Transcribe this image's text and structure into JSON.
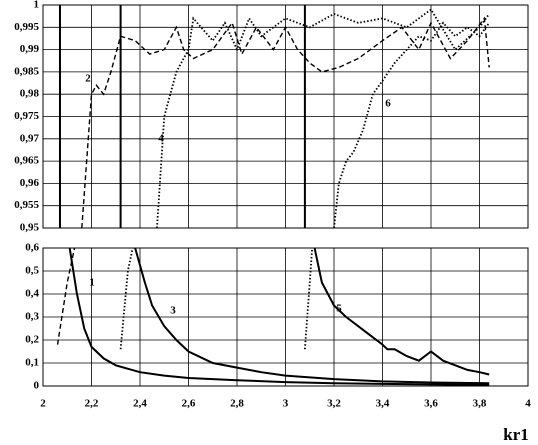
{
  "chart_data": [
    {
      "type": "line",
      "xlim": [
        2,
        4
      ],
      "ylim": [
        0.95,
        1
      ],
      "xticks": [
        2,
        2.2,
        2.4,
        2.6,
        2.8,
        3,
        3.2,
        3.4,
        3.6,
        3.8,
        4
      ],
      "show_xtick_labels": false,
      "yticks": [
        {
          "value": 0.95,
          "label": "0,95"
        },
        {
          "value": 0.955,
          "label": "0,955"
        },
        {
          "value": 0.96,
          "label": "0,96"
        },
        {
          "value": 0.965,
          "label": "0,965"
        },
        {
          "value": 0.97,
          "label": "0,97"
        },
        {
          "value": 0.975,
          "label": "0,975"
        },
        {
          "value": 0.98,
          "label": "0,98"
        },
        {
          "value": 0.985,
          "label": "0,985"
        },
        {
          "value": 0.99,
          "label": "0,99"
        },
        {
          "value": 0.995,
          "label": "0,995"
        },
        1
      ],
      "grid": true,
      "series": [
        {
          "style": "solid",
          "color": "#000",
          "x": [
            2.07,
            2.07
          ],
          "values": [
            0.95,
            1
          ]
        },
        {
          "style": "solid",
          "color": "#000",
          "x": [
            2.32,
            2.32
          ],
          "values": [
            0.95,
            1
          ]
        },
        {
          "style": "solid",
          "color": "#000",
          "x": [
            3.08,
            3.08
          ],
          "values": [
            0.95,
            1
          ]
        },
        {
          "name": "2",
          "style": "dashed",
          "color": "#000",
          "x": [
            2.16,
            2.2,
            2.22,
            2.25,
            2.28,
            2.32,
            2.38,
            2.44,
            2.5,
            2.55,
            2.58,
            2.62,
            2.7,
            2.78,
            2.82,
            2.88,
            2.95,
            3.0,
            3.05,
            3.1,
            3.15,
            3.22,
            3.3,
            3.4,
            3.48,
            3.55,
            3.6,
            3.68,
            3.75,
            3.82,
            3.84
          ],
          "values": [
            0.95,
            0.98,
            0.982,
            0.98,
            0.985,
            0.993,
            0.992,
            0.989,
            0.99,
            0.995,
            0.99,
            0.988,
            0.99,
            0.996,
            0.989,
            0.995,
            0.99,
            0.995,
            0.99,
            0.987,
            0.985,
            0.986,
            0.988,
            0.992,
            0.995,
            0.99,
            0.996,
            0.988,
            0.992,
            0.997,
            0.986
          ]
        },
        {
          "name": "4",
          "style": "dotted",
          "color": "#000",
          "x": [
            2.47,
            2.5,
            2.55,
            2.6,
            2.62,
            2.7,
            2.75,
            2.8,
            2.85,
            2.9,
            3.0,
            3.1,
            3.2,
            3.3,
            3.4,
            3.5,
            3.6,
            3.7,
            3.8,
            3.84
          ],
          "values": [
            0.95,
            0.975,
            0.985,
            0.99,
            0.997,
            0.992,
            0.996,
            0.99,
            0.997,
            0.993,
            0.997,
            0.995,
            0.998,
            0.996,
            0.997,
            0.995,
            0.999,
            0.99,
            0.995,
            0.998
          ]
        },
        {
          "name": "6",
          "style": "dotted",
          "color": "#000",
          "x": [
            3.2,
            3.22,
            3.25,
            3.28,
            3.32,
            3.36,
            3.4,
            3.45,
            3.5,
            3.55,
            3.6,
            3.65,
            3.7,
            3.75,
            3.8,
            3.84
          ],
          "values": [
            0.95,
            0.96,
            0.965,
            0.967,
            0.972,
            0.98,
            0.983,
            0.987,
            0.99,
            0.993,
            0.992,
            0.996,
            0.993,
            0.995,
            0.993,
            0.996
          ]
        }
      ]
    },
    {
      "type": "line",
      "xlabel": "kr1",
      "xlim": [
        2,
        4
      ],
      "ylim": [
        0,
        0.6
      ],
      "xticks": [
        2,
        {
          "value": 2.2,
          "label": "2,2"
        },
        {
          "value": 2.4,
          "label": "2,4"
        },
        {
          "value": 2.6,
          "label": "2,6"
        },
        {
          "value": 2.8,
          "label": "2,8"
        },
        3,
        {
          "value": 3.2,
          "label": "3,2"
        },
        {
          "value": 3.4,
          "label": "3,4"
        },
        {
          "value": 3.6,
          "label": "3,6"
        },
        {
          "value": 3.8,
          "label": "3,8"
        },
        4
      ],
      "show_xtick_labels": true,
      "yticks": [
        0,
        {
          "value": 0.1,
          "label": "0,1"
        },
        {
          "value": 0.2,
          "label": "0,2"
        },
        {
          "value": 0.3,
          "label": "0,3"
        },
        {
          "value": 0.4,
          "label": "0,4"
        },
        {
          "value": 0.5,
          "label": "0,5"
        },
        {
          "value": 0.6,
          "label": "0,6"
        }
      ],
      "grid": true,
      "series": [
        {
          "style": "dashed",
          "color": "#000",
          "x": [
            2.06,
            2.1,
            2.13
          ],
          "values": [
            0.18,
            0.45,
            0.6
          ]
        },
        {
          "name": "1",
          "style": "solid",
          "color": "#000",
          "x": [
            2.11,
            2.14,
            2.17,
            2.2,
            2.25,
            2.3,
            2.4,
            2.5,
            2.6,
            2.8,
            3.0,
            3.2,
            3.5,
            3.84
          ],
          "values": [
            0.6,
            0.4,
            0.25,
            0.17,
            0.12,
            0.09,
            0.06,
            0.045,
            0.035,
            0.025,
            0.017,
            0.012,
            0.008,
            0.005
          ]
        },
        {
          "style": "dotted",
          "color": "#000",
          "x": [
            2.32,
            2.35,
            2.37
          ],
          "values": [
            0.16,
            0.5,
            0.6
          ]
        },
        {
          "name": "3",
          "style": "solid",
          "color": "#000",
          "x": [
            2.38,
            2.42,
            2.45,
            2.5,
            2.55,
            2.6,
            2.7,
            2.8,
            2.9,
            3.0,
            3.2,
            3.4,
            3.6,
            3.84
          ],
          "values": [
            0.6,
            0.45,
            0.35,
            0.26,
            0.2,
            0.15,
            0.1,
            0.08,
            0.06,
            0.045,
            0.03,
            0.02,
            0.015,
            0.012
          ]
        },
        {
          "style": "dotted",
          "color": "#000",
          "x": [
            3.08,
            3.1,
            3.11
          ],
          "values": [
            0.16,
            0.45,
            0.6
          ]
        },
        {
          "name": "5",
          "style": "solid",
          "color": "#000",
          "x": [
            3.12,
            3.15,
            3.2,
            3.25,
            3.3,
            3.35,
            3.4,
            3.42,
            3.45,
            3.5,
            3.55,
            3.6,
            3.65,
            3.7,
            3.75,
            3.8,
            3.84
          ],
          "values": [
            0.6,
            0.45,
            0.35,
            0.3,
            0.26,
            0.22,
            0.18,
            0.16,
            0.16,
            0.13,
            0.11,
            0.15,
            0.11,
            0.09,
            0.07,
            0.06,
            0.05
          ]
        }
      ]
    }
  ]
}
